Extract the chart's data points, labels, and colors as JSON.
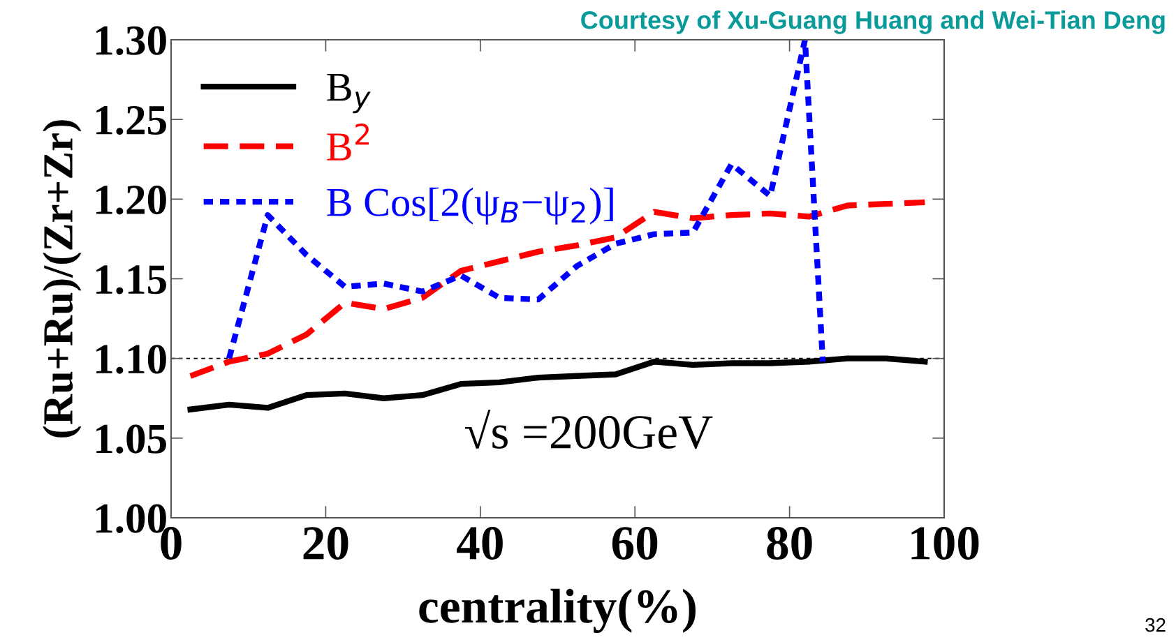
{
  "chart_data": {
    "type": "line",
    "xlabel": "centrality(%)",
    "ylabel": "(Ru+Ru)/(Zr+Zr)",
    "x": [
      2.5,
      7.5,
      12.5,
      17.5,
      22.5,
      27.5,
      32.5,
      37.5,
      42.5,
      47.5,
      52.5,
      57.5,
      62.5,
      67.5,
      72.5,
      77.5,
      82.5,
      87.5,
      92.5,
      97.5
    ],
    "series": [
      {
        "name": "B$_{y}$",
        "color": "#000000",
        "line_style": "solid",
        "values": [
          1.068,
          1.071,
          1.069,
          1.077,
          1.078,
          1.075,
          1.077,
          1.084,
          1.085,
          1.088,
          1.089,
          1.09,
          1.098,
          1.096,
          1.097,
          1.097,
          1.098,
          1.1,
          1.1,
          1.098
        ]
      },
      {
        "name": "B$^{2}$",
        "color": "#ff0000",
        "line_style": "dashed",
        "values": [
          1.089,
          1.098,
          1.103,
          1.115,
          1.135,
          1.131,
          1.138,
          1.155,
          1.161,
          1.167,
          1.171,
          1.176,
          1.192,
          1.188,
          1.19,
          1.191,
          1.189,
          1.196,
          1.197,
          1.198
        ]
      },
      {
        "name": "B Cos[2(ψ$_{B}$−ψ$_{2}$)]",
        "color": "#0000ff",
        "line_style": "dotted",
        "x": [
          7.5,
          12.5,
          17.5,
          22.5,
          27.5,
          32.5,
          37.5,
          42.5,
          47.5,
          52.5,
          57.5,
          62.5,
          67.5,
          72.5,
          77.5,
          82.0,
          84.3
        ],
        "values": [
          1.1,
          1.19,
          1.165,
          1.145,
          1.147,
          1.142,
          1.152,
          1.138,
          1.137,
          1.158,
          1.172,
          1.178,
          1.179,
          1.222,
          1.202,
          1.3,
          1.098
        ]
      }
    ],
    "xlim": [
      0,
      100
    ],
    "xticks": [
      0,
      20,
      40,
      60,
      80,
      100
    ],
    "ylim": [
      1.0,
      1.3
    ],
    "yticks": [
      {
        "value": 1.0,
        "label": "1.00"
      },
      {
        "value": 1.05,
        "label": "1.05"
      },
      {
        "value": 1.1,
        "label": "1.10"
      },
      {
        "value": 1.15,
        "label": "1.15"
      },
      {
        "value": 1.2,
        "label": "1.20"
      },
      {
        "value": 1.25,
        "label": "1.25"
      },
      {
        "value": 1.3,
        "label": "1.30"
      }
    ],
    "ref_lines": [
      {
        "axis": "y",
        "value": 1.1,
        "color": "#000000",
        "line_style": "dashed"
      }
    ],
    "annotations": [
      "√s =200GeV",
      "Courtesy of Xu-Guang Huang and Wei-Tian Deng",
      "32"
    ],
    "legend": "top left",
    "grid": false,
    "marker": "none"
  }
}
